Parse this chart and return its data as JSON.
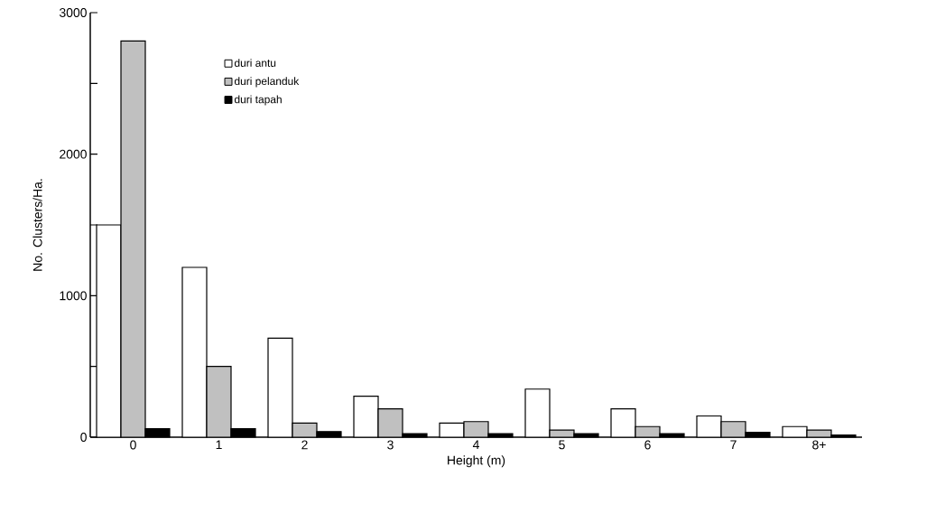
{
  "chart_data": {
    "type": "bar",
    "xlabel": "Height (m)",
    "ylabel": "No. Clusters/Ha.",
    "categories": [
      "0",
      "1",
      "2",
      "3",
      "4",
      "5",
      "6",
      "7",
      "8+"
    ],
    "series": [
      {
        "name": "duri antu",
        "color": "#ffffff",
        "values": [
          1500,
          1200,
          700,
          290,
          100,
          340,
          200,
          150,
          75
        ]
      },
      {
        "name": "duri pelanduk",
        "color": "#c0c0c0",
        "values": [
          2800,
          500,
          100,
          200,
          110,
          50,
          75,
          110,
          50
        ]
      },
      {
        "name": "duri tapah",
        "color": "#000000",
        "values": [
          60,
          60,
          40,
          25,
          25,
          25,
          25,
          35,
          15
        ]
      }
    ],
    "ylim": [
      0,
      3000
    ],
    "yticks": [
      0,
      {
        "value": 500,
        "label": null
      },
      1000,
      {
        "value": 1500,
        "label": null
      },
      2000,
      {
        "value": 2500,
        "label": null
      },
      3000
    ],
    "grid": false,
    "legend": "top left"
  }
}
